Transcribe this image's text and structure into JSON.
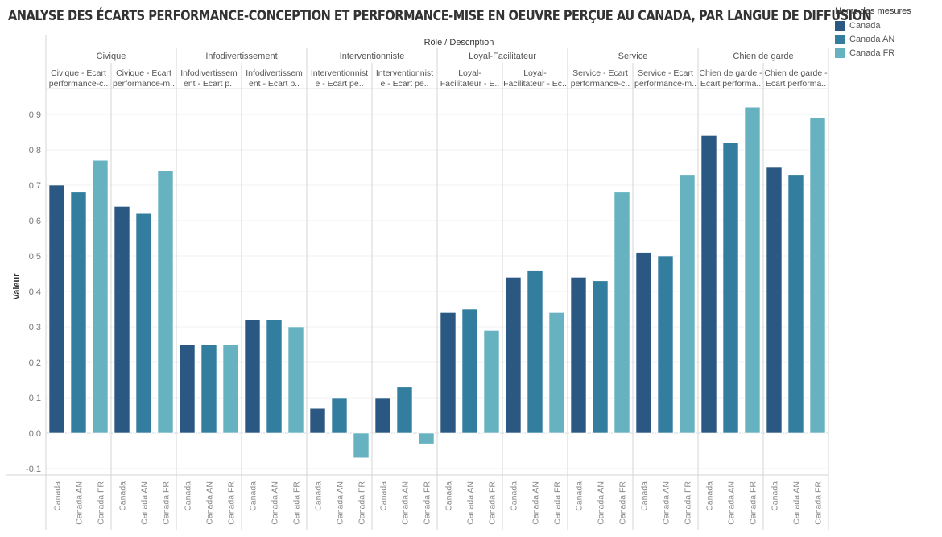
{
  "title": "ANALYSE DES ÉCARTS PERFORMANCE-CONCEPTION ET PERFORMANCE-MISE EN OEUVRE PERÇUE AU CANADA, PAR LANGUE DE DIFFUSION",
  "legend": {
    "title": "Noms des mesures",
    "items": [
      {
        "label": "Canada",
        "color": "#2b5883"
      },
      {
        "label": "Canada AN",
        "color": "#337d9f"
      },
      {
        "label": "Canada FR",
        "color": "#66b2c0"
      }
    ]
  },
  "chart_data": {
    "type": "bar",
    "title": "ANALYSE DES ÉCARTS PERFORMANCE-CONCEPTION ET PERFORMANCE-MISE EN OEUVRE PERÇUE AU CANADA, PAR LANGUE DE DIFFUSION",
    "header_label": "Rôle / Description",
    "xlabel": "",
    "ylabel": "Valeur",
    "ylim": [
      -0.12,
      0.97
    ],
    "yticks": [
      -0.1,
      0.0,
      0.1,
      0.2,
      0.3,
      0.4,
      0.5,
      0.6,
      0.7,
      0.8,
      0.9
    ],
    "ytick_labels": [
      "-0.1",
      "0.0",
      "0.1",
      "0.2",
      "0.3",
      "0.4",
      "0.5",
      "0.6",
      "0.7",
      "0.8",
      "0.9"
    ],
    "grid": true,
    "legend_position": "top-right",
    "categories": [
      "Canada",
      "Canada AN",
      "Canada FR"
    ],
    "groups": [
      {
        "role": "Civique",
        "descriptions": [
          {
            "label": [
              "Civique - Ecart",
              "performance-c.."
            ],
            "values": [
              0.7,
              0.68,
              0.77
            ]
          },
          {
            "label": [
              "Civique - Ecart",
              "performance-m.."
            ],
            "values": [
              0.64,
              0.62,
              0.74
            ]
          }
        ]
      },
      {
        "role": "Infodivertissement",
        "descriptions": [
          {
            "label": [
              "Infodivertissem",
              "ent - Ecart p.."
            ],
            "values": [
              0.25,
              0.25,
              0.25
            ]
          },
          {
            "label": [
              "Infodivertissem",
              "ent - Ecart p.."
            ],
            "values": [
              0.32,
              0.32,
              0.3
            ]
          }
        ]
      },
      {
        "role": "Interventionniste",
        "descriptions": [
          {
            "label": [
              "Interventionnist",
              "e - Ecart pe.."
            ],
            "values": [
              0.07,
              0.1,
              -0.07
            ]
          },
          {
            "label": [
              "Interventionnist",
              "e - Ecart pe.."
            ],
            "values": [
              0.1,
              0.13,
              -0.03
            ]
          }
        ]
      },
      {
        "role": "Loyal-Facilitateur",
        "descriptions": [
          {
            "label": [
              "Loyal-",
              "Facilitateur - E.."
            ],
            "values": [
              0.34,
              0.35,
              0.29
            ]
          },
          {
            "label": [
              "Loyal-",
              "Facilitateur - Ec.."
            ],
            "values": [
              0.44,
              0.46,
              0.34
            ]
          }
        ]
      },
      {
        "role": "Service",
        "descriptions": [
          {
            "label": [
              "Service - Ecart",
              "performance-c.."
            ],
            "values": [
              0.44,
              0.43,
              0.68
            ]
          },
          {
            "label": [
              "Service - Ecart",
              "performance-m.."
            ],
            "values": [
              0.51,
              0.5,
              0.73
            ]
          }
        ]
      },
      {
        "role": "Chien de garde",
        "descriptions": [
          {
            "label": [
              "Chien de garde -",
              "Ecart performa.."
            ],
            "values": [
              0.84,
              0.82,
              0.92
            ]
          },
          {
            "label": [
              "Chien de garde -",
              "Ecart performa.."
            ],
            "values": [
              0.75,
              0.73,
              0.89
            ]
          }
        ]
      }
    ],
    "series": [
      {
        "name": "Canada",
        "color": "#2b5883"
      },
      {
        "name": "Canada AN",
        "color": "#337d9f"
      },
      {
        "name": "Canada FR",
        "color": "#66b2c0"
      }
    ]
  }
}
